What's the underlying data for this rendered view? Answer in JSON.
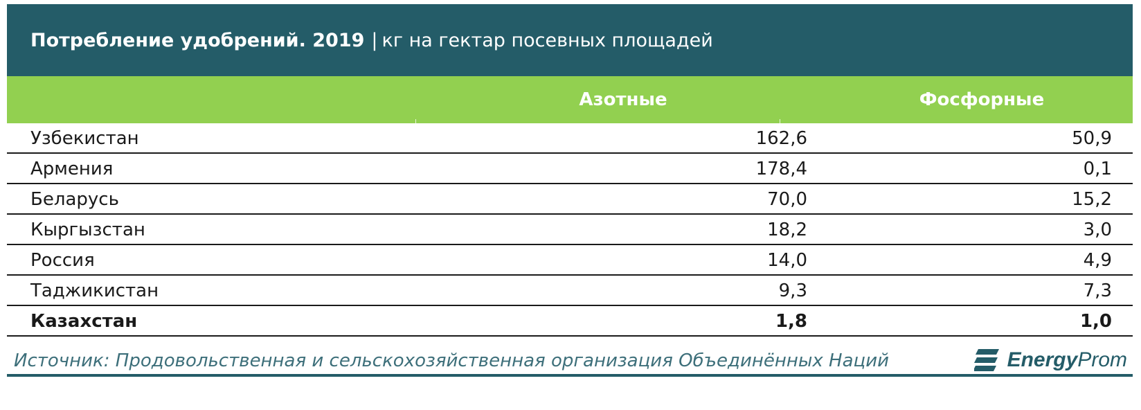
{
  "chart_data": {
    "type": "table",
    "title": "Потребление удобрений. 2019",
    "separator": "|",
    "unit": "кг на гектар посевных площадей",
    "columns": [
      "Азотные",
      "Фосфорные"
    ],
    "rows": [
      {
        "country": "Узбекистан",
        "nitrogen": "162,6",
        "phosphate": "50,9",
        "bold": false
      },
      {
        "country": "Армения",
        "nitrogen": "178,4",
        "phosphate": "0,1",
        "bold": false
      },
      {
        "country": "Беларусь",
        "nitrogen": "70,0",
        "phosphate": "15,2",
        "bold": false
      },
      {
        "country": "Кыргызстан",
        "nitrogen": "18,2",
        "phosphate": "3,0",
        "bold": false
      },
      {
        "country": "Россия",
        "nitrogen": "14,0",
        "phosphate": "4,9",
        "bold": false
      },
      {
        "country": "Таджикистан",
        "nitrogen": "9,3",
        "phosphate": "7,3",
        "bold": false
      },
      {
        "country": "Казахстан",
        "nitrogen": "1,8",
        "phosphate": "1,0",
        "bold": true
      }
    ],
    "source": "Источник: Продовольственная и сельскохозяйственная организация Объединённых Наций"
  },
  "logo": {
    "name_part1": "Energy",
    "name_part2": "Prom",
    "icon": "energyprom-logo-icon"
  },
  "colors": {
    "title_bg": "#245c68",
    "header_bg": "#92d050",
    "text": "#1a1a1a",
    "source_text": "#3d6f7a"
  }
}
